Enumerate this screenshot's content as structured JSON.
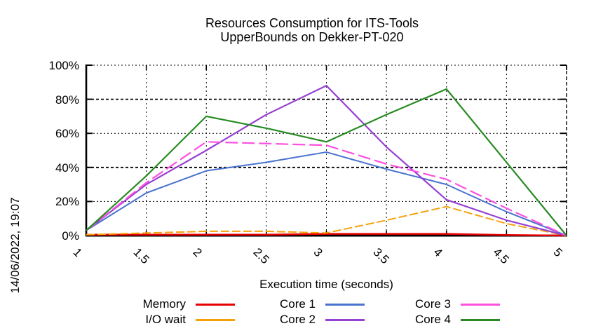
{
  "header": {
    "title_line1": "Resources Consumption for ITS-Tools",
    "title_line2": "UpperBounds on Dekker-PT-020"
  },
  "timestamp": "14/06/2022, 19:07",
  "axes": {
    "xlabel": "Execution time (seconds)",
    "x_tick_labels": [
      "1",
      "1.5",
      "2",
      "2.5",
      "3",
      "3.5",
      "4",
      "4.5",
      "5"
    ],
    "y_tick_labels": [
      "0%",
      "20%",
      "40%",
      "60%",
      "80%",
      "100%"
    ],
    "x_range": [
      1,
      5
    ],
    "y_range": [
      0,
      100
    ]
  },
  "legend": {
    "rows": [
      [
        {
          "label": "Memory",
          "color": "#e60000"
        },
        {
          "label": "Core 1",
          "color": "#4973ce"
        },
        {
          "label": "Core 3",
          "color": "#fc50e0"
        }
      ],
      [
        {
          "label": "I/O wait",
          "color": "#f7a10a"
        },
        {
          "label": "Core 2",
          "color": "#9640d2"
        },
        {
          "label": "Core 4",
          "color": "#278b22"
        }
      ]
    ]
  },
  "chart_data": {
    "type": "line",
    "title": "Resources Consumption for ITS-Tools — UpperBounds on Dekker-PT-020",
    "xlabel": "Execution time (seconds)",
    "ylabel": "",
    "xlim": [
      1,
      5
    ],
    "ylim": [
      0,
      100
    ],
    "grid": true,
    "legend_position": "bottom",
    "x": [
      1,
      1.5,
      2,
      2.5,
      3,
      3.5,
      4,
      4.5,
      5
    ],
    "series": [
      {
        "name": "Memory",
        "color": "#e60000",
        "width": 2.5,
        "dash": "",
        "values": [
          0.5,
          0.5,
          0.5,
          0.5,
          1,
          1,
          1,
          0.3,
          0
        ]
      },
      {
        "name": "I/O wait",
        "color": "#f7a10a",
        "width": 2,
        "dash": "12 4",
        "values": [
          0.5,
          1.5,
          2.5,
          2.5,
          1.5,
          9,
          17,
          7,
          0
        ]
      },
      {
        "name": "Core 1",
        "color": "#4973ce",
        "width": 2,
        "dash": "",
        "values": [
          3,
          25,
          38,
          43,
          49,
          39,
          30,
          14,
          0
        ]
      },
      {
        "name": "Core 2",
        "color": "#9640d2",
        "width": 2.2,
        "dash": "",
        "values": [
          3,
          30,
          50,
          71,
          88,
          52,
          21,
          9,
          0
        ]
      },
      {
        "name": "Core 3",
        "color": "#fc50e0",
        "width": 2.2,
        "dash": "18 6",
        "values": [
          3,
          31,
          55,
          54,
          53,
          42,
          33,
          16,
          0
        ]
      },
      {
        "name": "Core 4",
        "color": "#278b22",
        "width": 2.2,
        "dash": "",
        "values": [
          3,
          35,
          70,
          63,
          55,
          71,
          86,
          43,
          0
        ]
      }
    ]
  }
}
